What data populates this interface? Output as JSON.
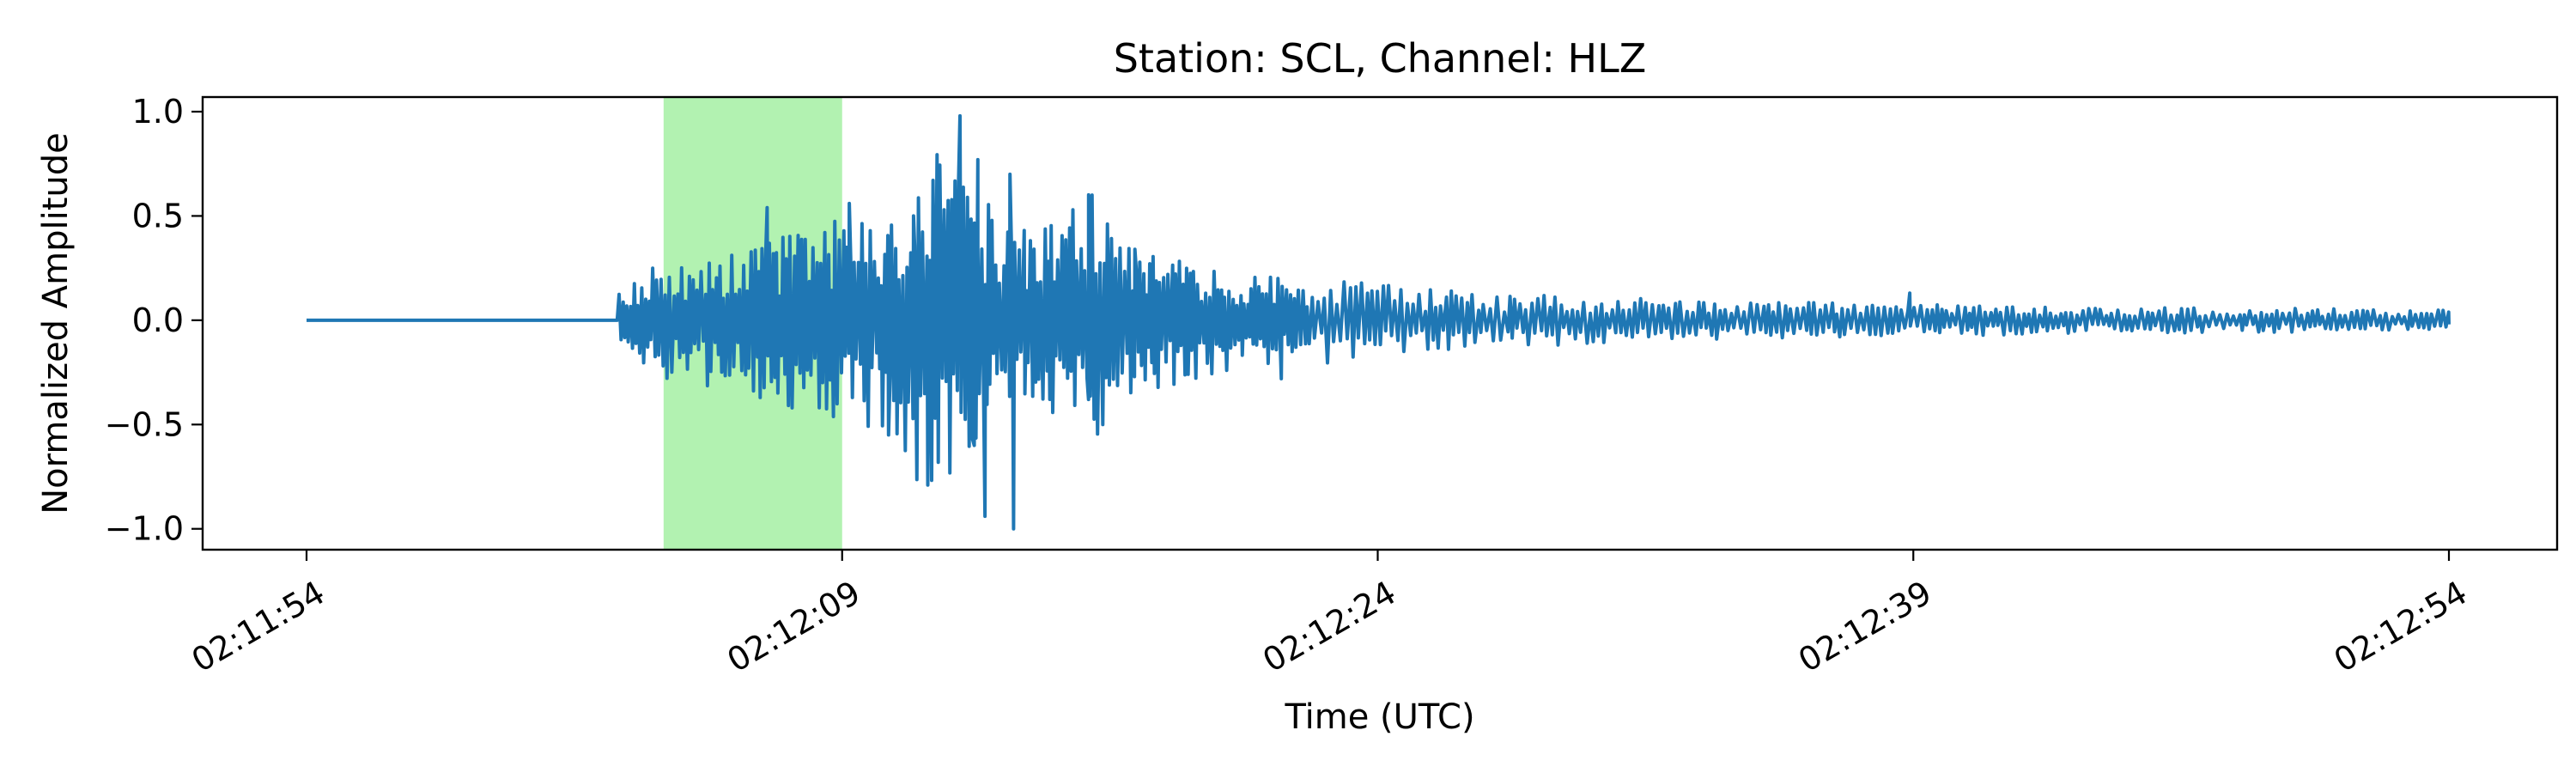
{
  "chart_data": {
    "type": "line",
    "title": "Station: SCL, Channel: HLZ",
    "xlabel": "Time (UTC)",
    "ylabel": "Normalized Amplitude",
    "x_ticks": [
      "02:11:54",
      "02:12:09",
      "02:12:24",
      "02:12:39",
      "02:12:54"
    ],
    "x_start": "02:11:54",
    "x_end": "02:12:54",
    "y_ticks": [
      "1.0",
      "0.5",
      "0.0",
      "−0.5",
      "−1.0"
    ],
    "ylim": [
      -1.1,
      1.07
    ],
    "grid": false,
    "highlight": {
      "start": "02:12:04",
      "end": "02:12:09",
      "color": "#b2f2b1"
    },
    "series": [
      {
        "color": "#1f77b4",
        "quiet_until": "02:12:02.7",
        "end": "02:12:54",
        "envelope": [
          [
            "02:12:02.7",
            0.12
          ],
          [
            "02:12:04",
            0.28
          ],
          [
            "02:12:06",
            0.32
          ],
          [
            "02:12:08",
            0.42
          ],
          [
            "02:12:09",
            0.5
          ],
          [
            "02:12:10",
            0.5
          ],
          [
            "02:12:11",
            0.72
          ],
          [
            "02:12:12",
            0.85
          ],
          [
            "02:12:13",
            0.55
          ],
          [
            "02:12:14",
            0.36
          ],
          [
            "02:12:15",
            0.45
          ],
          [
            "02:12:16",
            0.6
          ],
          [
            "02:12:17",
            0.38
          ],
          [
            "02:12:18",
            0.32
          ],
          [
            "02:12:20",
            0.22
          ],
          [
            "02:12:22",
            0.18
          ],
          [
            "02:12:25",
            0.12
          ],
          [
            "02:12:30",
            0.09
          ],
          [
            "02:12:35",
            0.07
          ],
          [
            "02:12:40",
            0.06
          ],
          [
            "02:12:45",
            0.05
          ],
          [
            "02:12:50",
            0.045
          ],
          [
            "02:12:54",
            0.04
          ]
        ],
        "peaks": [
          {
            "time": "02:12:06.9",
            "value": 0.54
          },
          {
            "time": "02:12:07.6",
            "value": -0.42
          },
          {
            "time": "02:12:09.2",
            "value": 0.56
          },
          {
            "time": "02:12:10.3",
            "value": -0.55
          },
          {
            "time": "02:12:11.0",
            "value": 0.5
          },
          {
            "time": "02:12:11.4",
            "value": -0.79
          },
          {
            "time": "02:12:12.3",
            "value": 0.98
          },
          {
            "time": "02:12:12.7",
            "value": -0.6
          },
          {
            "time": "02:12:12.8",
            "value": 0.77
          },
          {
            "time": "02:12:13.0",
            "value": -0.94
          },
          {
            "time": "02:12:13.7",
            "value": 0.7
          },
          {
            "time": "02:12:13.8",
            "value": -1.0
          },
          {
            "time": "02:12:14.1",
            "value": 0.43
          },
          {
            "time": "02:12:15.9",
            "value": -0.38
          },
          {
            "time": "02:12:16.0",
            "value": 0.6
          },
          {
            "time": "02:12:16.3",
            "value": -0.5
          },
          {
            "time": "02:12:17.2",
            "value": 0.34
          },
          {
            "time": "02:12:21.3",
            "value": -0.28
          },
          {
            "time": "02:12:38.9",
            "value": 0.13
          }
        ],
        "final_value": -0.02
      }
    ]
  }
}
